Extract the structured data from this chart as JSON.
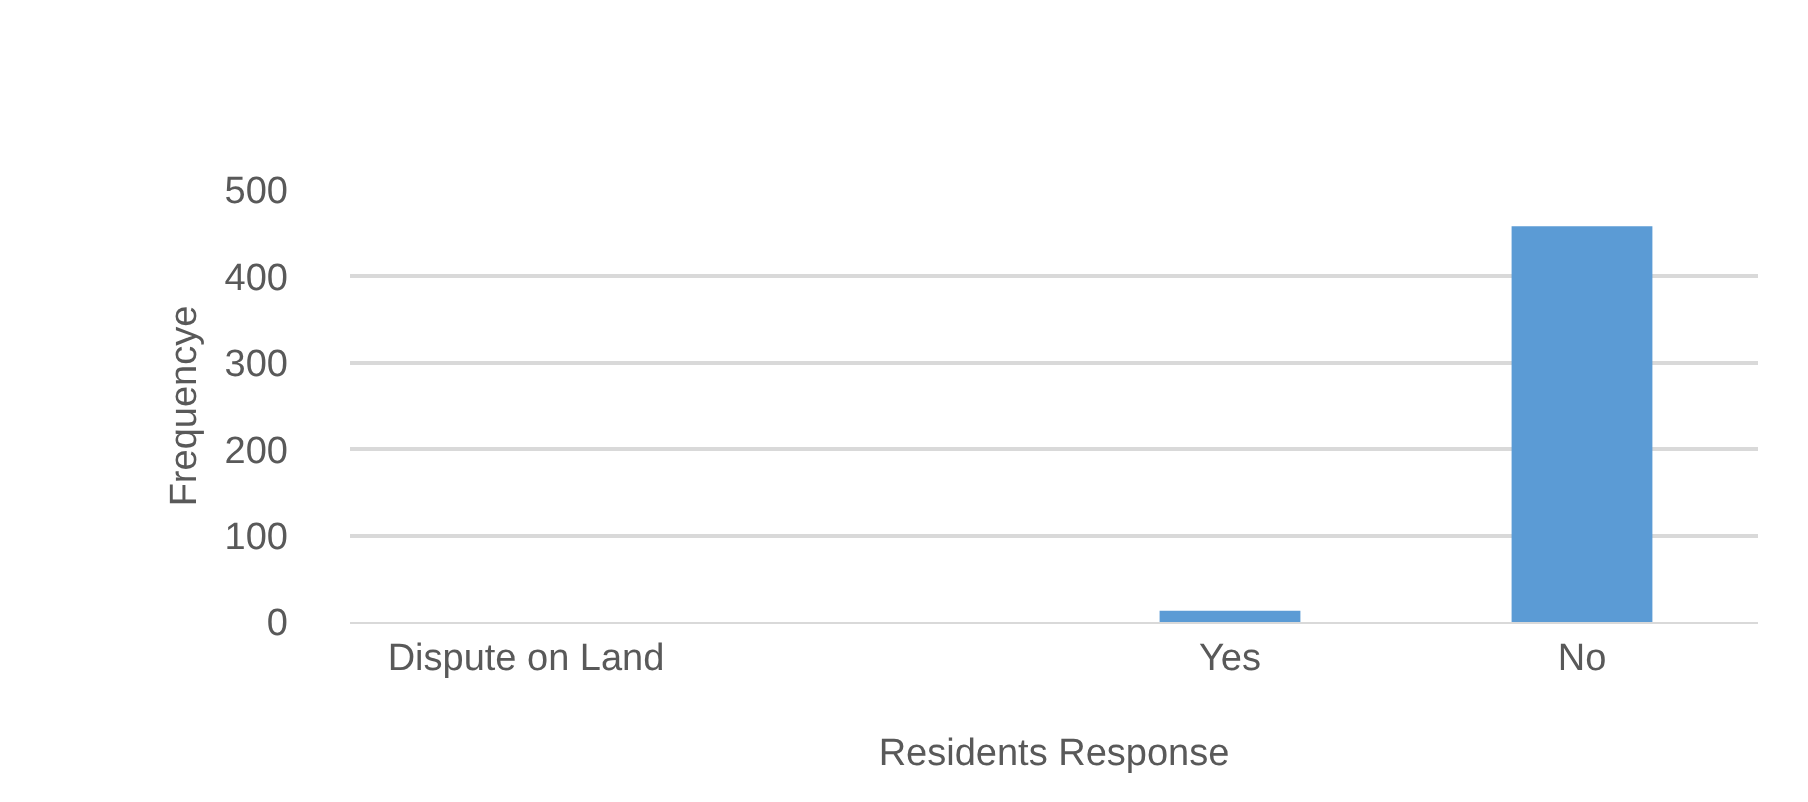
{
  "chart_data": {
    "type": "bar",
    "xlabel": "Residents Response",
    "ylabel": "Frequencye",
    "categories": [
      "Dispute on Land",
      null,
      "Yes",
      "No"
    ],
    "values": [
      0,
      0,
      13,
      458
    ],
    "color": "#5b9bd5",
    "ylim": [
      0,
      500
    ],
    "yticks": [
      0,
      100,
      200,
      300,
      400,
      500
    ],
    "grid": "y",
    "legend": false
  }
}
